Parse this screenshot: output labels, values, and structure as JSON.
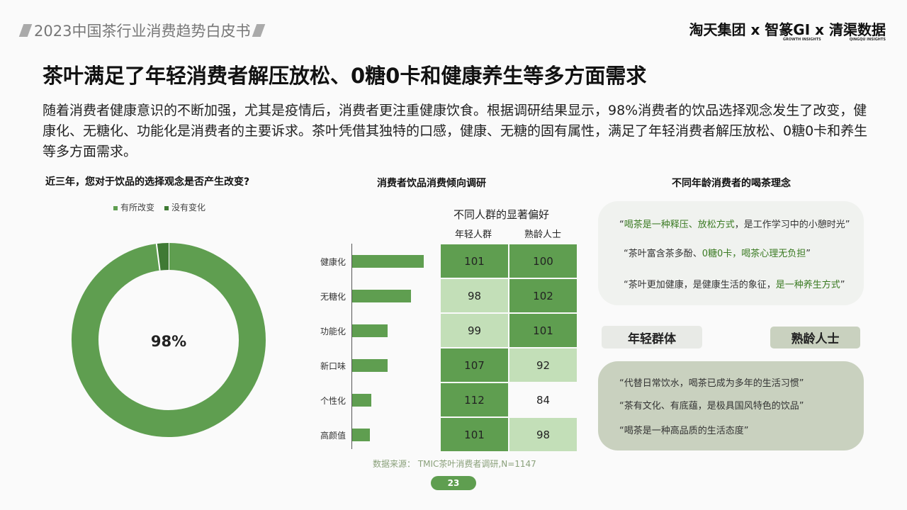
{
  "header": {
    "report_title": "2023中国茶行业消费趋势白皮书",
    "partners": "淘天集团 x 智篆GI x 清渠数据",
    "partner_sub1": "GROWTH INSIGHTS",
    "partner_sub2": "QINGQU INSIGHTS"
  },
  "title": "茶叶满足了年轻消费者解压放松、0糖0卡和健康养生等多方面需求",
  "intro": "随着消费者健康意识的不断加强，尤其是疫情后，消费者更注重健康饮食。根据调研结果显示，98%消费者的饮品选择观念发生了改变，健康化、无糖化、功能化是消费者的主要诉求。茶叶凭借其独特的口感，健康、无糖的固有属性，满足了年轻消费者解压放松、0糖0卡和养生等多方面需求。",
  "colors": {
    "green": "#5f9e50",
    "dark_green": "#3f7a34",
    "light_green": "#c3dfb8"
  },
  "chart_data": [
    {
      "type": "pie",
      "title": "近三年，您对于饮品的选择观念是否产生改变?",
      "legend": [
        "有所改变",
        "没有变化"
      ],
      "values": [
        98,
        2
      ],
      "center_label": "98%",
      "legend_placement": "top"
    },
    {
      "type": "bar",
      "title": "消费者饮品消费倾向调研",
      "categories": [
        "健康化",
        "无糖化",
        "功能化",
        "新口味",
        "个性化",
        "高颜值"
      ],
      "values": [
        101,
        83,
        50,
        50,
        27,
        25
      ]
    },
    {
      "type": "table",
      "title": "不同人群的显著偏好",
      "columns": [
        "年轻人群",
        "熟龄人士"
      ],
      "rows": [
        [
          101,
          100
        ],
        [
          98,
          102
        ],
        [
          99,
          101
        ],
        [
          107,
          92
        ],
        [
          112,
          84
        ],
        [
          101,
          98
        ]
      ],
      "highlight": [
        [
          "dark",
          "dark"
        ],
        [
          "light",
          "dark"
        ],
        [
          "light",
          "dark"
        ],
        [
          "dark",
          "light"
        ],
        [
          "dark",
          "none"
        ],
        [
          "dark",
          "light"
        ]
      ]
    }
  ],
  "source": "数据来源：  TMIC茶叶消费者调研,N=1147",
  "right": {
    "title": "不同年龄消费者的喝茶理念",
    "young_quotes": [
      {
        "a": "“",
        "b": "喝茶是一种释压、放松方式",
        "c": "，是工作学习中的小憩时光”"
      },
      {
        "a": "“茶叶富含茶多酚、",
        "b": "0糖0卡，喝茶心理无负担",
        "c": "”"
      },
      {
        "a": "“茶叶更加健康，是健康生活的象征，",
        "b": "是一种养生方式",
        "c": "”"
      }
    ],
    "young_label": "年轻群体",
    "mature_label": "熟龄人士",
    "mature_quotes": [
      "“代替日常饮水，喝茶已成为多年的生活习惯”",
      "“茶有文化、有底蕴，是极具国风特色的饮品”",
      "“喝茶是一种高品质的生活态度”"
    ]
  },
  "page": "23"
}
